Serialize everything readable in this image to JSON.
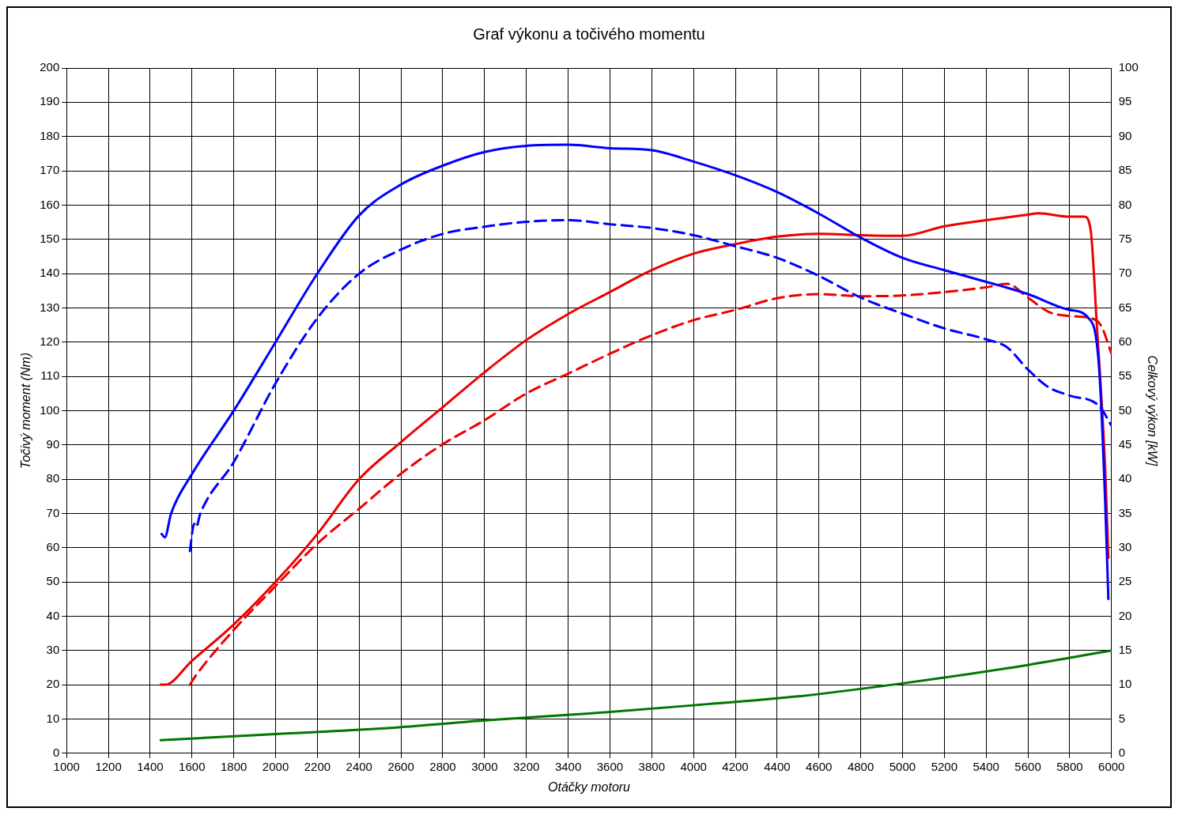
{
  "chart_data": {
    "type": "line",
    "title": "Graf výkonu a točivého momentu",
    "xlabel": "Otáčky motoru",
    "ylabel": "Točivý moment (Nm)",
    "y2label": "Celkový výkon [kW]",
    "xlim": [
      1000,
      6000
    ],
    "xticks": [
      1000,
      1200,
      1400,
      1600,
      1800,
      2000,
      2200,
      2400,
      2600,
      2800,
      3000,
      3200,
      3400,
      3600,
      3800,
      4000,
      4200,
      4400,
      4600,
      4800,
      5000,
      5200,
      5400,
      5600,
      5800,
      6000
    ],
    "ylim": [
      0,
      200
    ],
    "yticks": [
      0,
      10,
      20,
      30,
      40,
      50,
      60,
      70,
      80,
      90,
      100,
      110,
      120,
      130,
      140,
      150,
      160,
      170,
      180,
      190,
      200
    ],
    "y2lim": [
      0,
      100
    ],
    "y2ticks": [
      0,
      5,
      10,
      15,
      20,
      25,
      30,
      35,
      40,
      45,
      50,
      55,
      60,
      65,
      70,
      75,
      80,
      85,
      90,
      95,
      100
    ],
    "grid": true,
    "legend": false,
    "marker": "none",
    "series": [
      {
        "color": "#0000ff",
        "line_style": "solid",
        "axis": "y",
        "x": [
          1455,
          1470,
          1500,
          1600,
          1800,
          2000,
          2200,
          2400,
          2600,
          2800,
          3000,
          3200,
          3400,
          3600,
          3800,
          4000,
          4200,
          4400,
          4600,
          4800,
          5000,
          5200,
          5400,
          5600,
          5800,
          5890,
          5940,
          5970,
          5985
        ],
        "values": [
          64,
          63,
          70,
          81.5,
          100,
          120,
          140,
          157,
          166,
          171.5,
          175.5,
          177.3,
          177.6,
          176.6,
          176,
          172.7,
          168.7,
          163.8,
          157.5,
          150.5,
          144.6,
          141,
          137.6,
          134,
          129.4,
          127,
          113,
          73,
          45
        ]
      },
      {
        "color": "#0000ff",
        "line_style": "dashed",
        "axis": "y",
        "x": [
          1590,
          1610,
          1620,
          1640,
          1800,
          2000,
          2200,
          2400,
          2600,
          2800,
          3000,
          3200,
          3400,
          3600,
          3800,
          4000,
          4200,
          4400,
          4600,
          4800,
          5000,
          5200,
          5400,
          5500,
          5600,
          5700,
          5800,
          5940,
          6000
        ],
        "values": [
          59,
          67,
          66,
          70,
          85,
          108,
          127,
          140,
          147,
          151.6,
          153.7,
          155.1,
          155.6,
          154.4,
          153.3,
          151.2,
          148,
          144.6,
          139.3,
          133,
          128.3,
          124,
          120.8,
          118.5,
          112,
          106.8,
          104.4,
          101.4,
          95.6
        ]
      },
      {
        "color": "#ee0000",
        "line_style": "solid",
        "axis": "y2",
        "x": [
          1450,
          1470,
          1600,
          1800,
          2000,
          2200,
          2400,
          2600,
          2800,
          3000,
          3200,
          3400,
          3600,
          3800,
          4000,
          4200,
          4400,
          4600,
          4800,
          5000,
          5200,
          5400,
          5600,
          5650,
          5800,
          5870,
          5900,
          5930,
          5970,
          5985
        ],
        "values": [
          10,
          10,
          13.5,
          18.8,
          25,
          32,
          40,
          45.4,
          50.5,
          55.6,
          60.3,
          64.1,
          67.3,
          70.5,
          72.9,
          74.3,
          75.4,
          75.8,
          75.6,
          75.5,
          76.9,
          77.8,
          78.6,
          78.8,
          78.3,
          78.3,
          76.4,
          62.4,
          41.4,
          28.5
        ]
      },
      {
        "color": "#ee0000",
        "line_style": "dashed",
        "axis": "y2",
        "x": [
          1590,
          1620,
          1800,
          2000,
          2200,
          2400,
          2600,
          2800,
          3000,
          3200,
          3400,
          3600,
          3800,
          4000,
          4200,
          4400,
          4600,
          4800,
          5000,
          5200,
          5400,
          5500,
          5600,
          5700,
          5800,
          5900,
          5950,
          6000
        ],
        "values": [
          10,
          11.4,
          18,
          24.4,
          30.6,
          35.7,
          40.8,
          45.1,
          48.6,
          52.5,
          55.4,
          58.3,
          61,
          63.2,
          64.7,
          66.4,
          67,
          66.7,
          66.8,
          67.3,
          68,
          68.5,
          66.5,
          64.4,
          63.8,
          63.5,
          62.4,
          58.3
        ]
      },
      {
        "color": "#007700",
        "line_style": "solid",
        "axis": "y2",
        "x": [
          1450,
          2000,
          2500,
          3000,
          3500,
          4000,
          4500,
          5000,
          5500,
          6000
        ],
        "values": [
          1.9,
          2.8,
          3.6,
          4.8,
          5.8,
          7,
          8.3,
          10.2,
          12.4,
          15
        ]
      }
    ]
  }
}
